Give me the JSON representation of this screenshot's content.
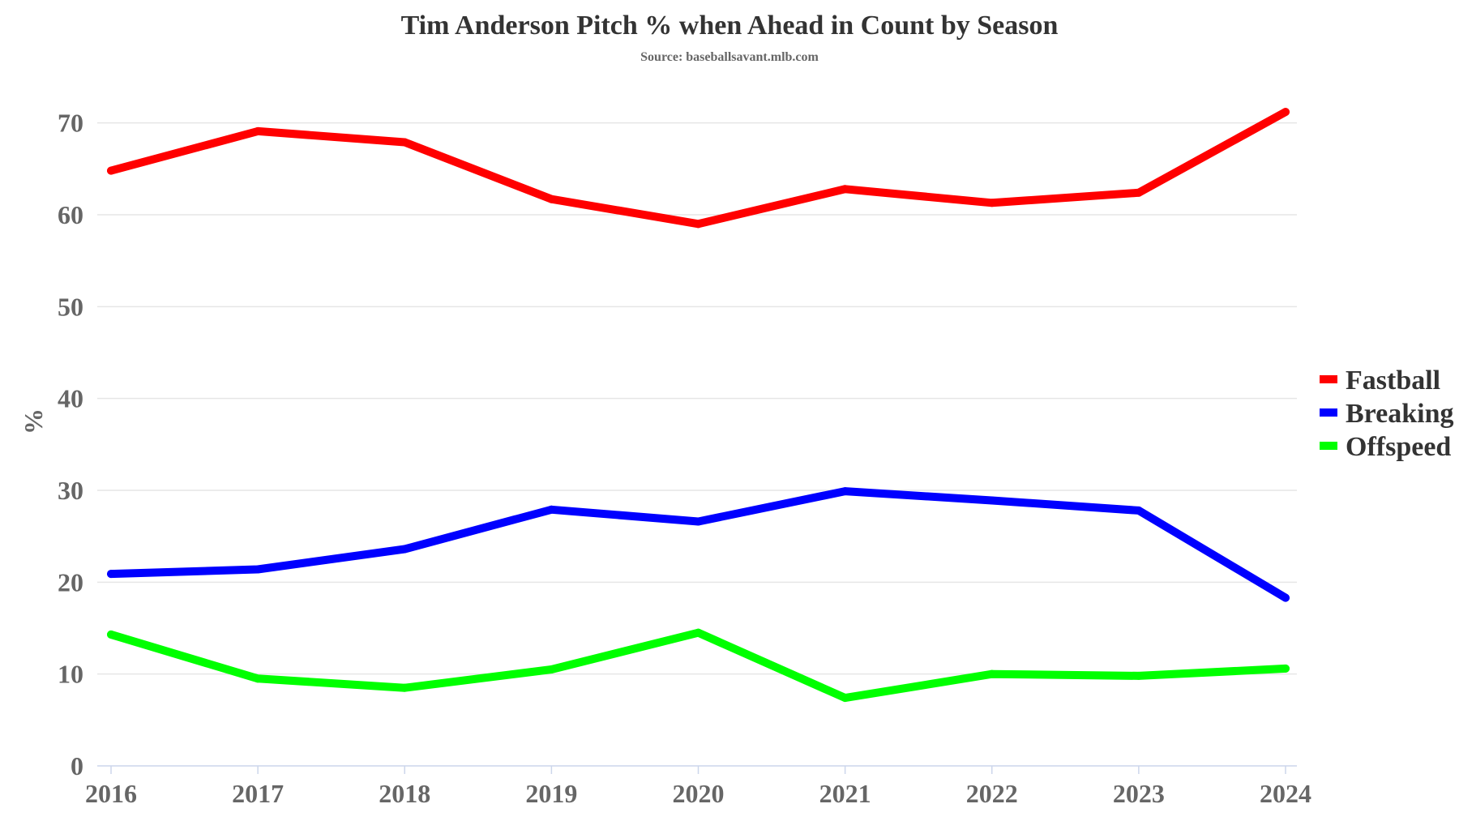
{
  "chart_data": {
    "type": "line",
    "title": "Tim Anderson Pitch % when Ahead in Count by Season",
    "subtitle": "Source: baseballsavant.mlb.com",
    "xlabel": "",
    "ylabel": "%",
    "categories": [
      "2016",
      "2017",
      "2018",
      "2019",
      "2020",
      "2021",
      "2022",
      "2023",
      "2024"
    ],
    "ylim": [
      0,
      75
    ],
    "yticks": [
      0,
      10,
      20,
      30,
      40,
      50,
      60,
      70
    ],
    "grid": true,
    "legend_position": "right",
    "series": [
      {
        "name": "Fastball",
        "color": "#ff0000",
        "values": [
          64.8,
          69.1,
          67.9,
          61.7,
          59.0,
          62.8,
          61.3,
          62.4,
          71.2
        ]
      },
      {
        "name": "Breaking",
        "color": "#0000ff",
        "values": [
          20.9,
          21.4,
          23.6,
          27.9,
          26.6,
          29.9,
          28.9,
          27.8,
          18.3
        ]
      },
      {
        "name": "Offspeed",
        "color": "#00ff00",
        "values": [
          14.3,
          9.5,
          8.5,
          10.5,
          14.5,
          7.4,
          10.0,
          9.8,
          10.6
        ]
      }
    ]
  }
}
